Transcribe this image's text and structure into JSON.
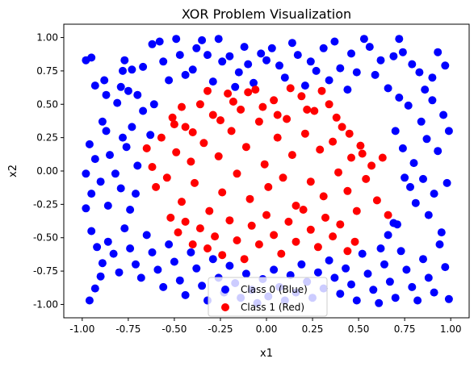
{
  "chart_data": {
    "type": "scatter",
    "title": "XOR Problem Visualization",
    "xlabel": "x1",
    "ylabel": "x2",
    "xlim": [
      -1.1,
      1.1
    ],
    "ylim": [
      -1.1,
      1.1
    ],
    "xticks": [
      "-1.00",
      "-0.75",
      "-0.50",
      "-0.25",
      "0.00",
      "0.25",
      "0.50",
      "0.75",
      "1.00"
    ],
    "yticks": [
      "1.00",
      "0.75",
      "0.50",
      "0.25",
      "0.00",
      "-0.25",
      "-0.50",
      "-0.75",
      "-1.00"
    ],
    "grid": false,
    "legend_position": "bottom-center",
    "series": [
      {
        "name": "Class 0 (Blue)",
        "color": "#0000ff",
        "points": [
          [
            -0.98,
            0.83
          ],
          [
            -0.95,
            0.85
          ],
          [
            -0.93,
            0.64
          ],
          [
            -0.88,
            0.68
          ],
          [
            -0.87,
            0.57
          ],
          [
            -0.79,
            0.63
          ],
          [
            -0.78,
            0.75
          ],
          [
            -0.77,
            0.83
          ],
          [
            -0.73,
            0.76
          ],
          [
            -0.75,
            0.6
          ],
          [
            -0.7,
            0.57
          ],
          [
            -0.67,
            0.78
          ],
          [
            -0.62,
            0.95
          ],
          [
            -0.58,
            0.97
          ],
          [
            -0.56,
            0.82
          ],
          [
            -0.53,
            0.68
          ],
          [
            -0.49,
            0.99
          ],
          [
            -0.47,
            0.87
          ],
          [
            -0.44,
            0.72
          ],
          [
            -0.4,
            0.76
          ],
          [
            -0.38,
            0.92
          ],
          [
            -0.35,
            0.98
          ],
          [
            -0.32,
            0.87
          ],
          [
            -0.29,
            0.67
          ],
          [
            -0.26,
            0.99
          ],
          [
            -0.24,
            0.82
          ],
          [
            -0.2,
            0.86
          ],
          [
            -0.17,
            0.63
          ],
          [
            -0.15,
            0.74
          ],
          [
            -0.12,
            0.93
          ],
          [
            -0.1,
            0.8
          ],
          [
            -0.07,
            0.66
          ],
          [
            -0.03,
            0.88
          ],
          [
            0.0,
            0.83
          ],
          [
            0.03,
            0.92
          ],
          [
            0.07,
            0.79
          ],
          [
            0.1,
            0.7
          ],
          [
            0.14,
            0.96
          ],
          [
            0.17,
            0.87
          ],
          [
            0.21,
            0.64
          ],
          [
            0.24,
            0.82
          ],
          [
            0.27,
            0.75
          ],
          [
            0.31,
            0.92
          ],
          [
            0.34,
            0.68
          ],
          [
            0.37,
            0.97
          ],
          [
            0.4,
            0.77
          ],
          [
            0.44,
            0.61
          ],
          [
            0.46,
            0.88
          ],
          [
            0.49,
            0.74
          ],
          [
            0.53,
            0.99
          ],
          [
            0.56,
            0.93
          ],
          [
            0.59,
            0.72
          ],
          [
            0.62,
            0.83
          ],
          [
            0.66,
            0.62
          ],
          [
            0.69,
            0.86
          ],
          [
            0.72,
            0.99
          ],
          [
            0.74,
            0.89
          ],
          [
            0.79,
            0.8
          ],
          [
            0.83,
            0.74
          ],
          [
            0.86,
            0.61
          ],
          [
            0.9,
            0.7
          ],
          [
            0.93,
            0.89
          ],
          [
            0.97,
            0.79
          ],
          [
            -0.96,
            0.2
          ],
          [
            -0.93,
            0.09
          ],
          [
            -0.89,
            0.37
          ],
          [
            -0.87,
            0.3
          ],
          [
            -0.85,
            0.12
          ],
          [
            -0.81,
            0.51
          ],
          [
            -0.78,
            0.25
          ],
          [
            -0.76,
            0.18
          ],
          [
            -0.73,
            0.33
          ],
          [
            -0.7,
            0.04
          ],
          [
            -0.67,
            0.45
          ],
          [
            -0.63,
            0.27
          ],
          [
            -0.61,
            0.5
          ],
          [
            -0.98,
            -0.02
          ],
          [
            -0.95,
            -0.17
          ],
          [
            -0.9,
            -0.08
          ],
          [
            -0.86,
            -0.26
          ],
          [
            -0.82,
            -0.02
          ],
          [
            -0.79,
            -0.13
          ],
          [
            -0.74,
            -0.29
          ],
          [
            -0.71,
            -0.17
          ],
          [
            0.7,
            0.3
          ],
          [
            0.74,
            0.17
          ],
          [
            0.77,
            0.49
          ],
          [
            0.8,
            0.06
          ],
          [
            0.84,
            0.37
          ],
          [
            0.87,
            0.24
          ],
          [
            0.9,
            0.53
          ],
          [
            0.93,
            0.15
          ],
          [
            0.96,
            0.42
          ],
          [
            0.99,
            0.3
          ],
          [
            0.72,
            0.55
          ],
          [
            0.75,
            -0.05
          ],
          [
            0.78,
            -0.12
          ],
          [
            0.81,
            -0.24
          ],
          [
            0.85,
            -0.06
          ],
          [
            0.88,
            -0.33
          ],
          [
            0.91,
            -0.17
          ],
          [
            0.95,
            -0.46
          ],
          [
            0.98,
            -0.09
          ],
          [
            0.71,
            -0.4
          ],
          [
            -0.98,
            -0.28
          ],
          [
            -0.95,
            -0.45
          ],
          [
            -0.92,
            -0.57
          ],
          [
            -0.89,
            -0.69
          ],
          [
            -0.86,
            -0.53
          ],
          [
            -0.83,
            -0.62
          ],
          [
            -0.8,
            -0.76
          ],
          [
            -0.77,
            -0.43
          ],
          [
            -0.74,
            -0.58
          ],
          [
            -0.71,
            -0.7
          ],
          [
            -0.68,
            -0.8
          ],
          [
            -0.65,
            -0.48
          ],
          [
            -0.62,
            -0.61
          ],
          [
            -0.59,
            -0.74
          ],
          [
            -0.56,
            -0.87
          ],
          [
            -0.53,
            -0.55
          ],
          [
            -0.5,
            -0.68
          ],
          [
            -0.47,
            -0.82
          ],
          [
            -0.44,
            -0.93
          ],
          [
            -0.41,
            -0.61
          ],
          [
            -0.38,
            -0.73
          ],
          [
            -0.35,
            -0.86
          ],
          [
            -0.32,
            -0.97
          ],
          [
            -0.29,
            -0.66
          ],
          [
            -0.26,
            -0.8
          ],
          [
            -0.23,
            -0.91
          ],
          [
            -0.2,
            -0.71
          ],
          [
            -0.17,
            -0.84
          ],
          [
            -0.14,
            -0.95
          ],
          [
            -0.11,
            -0.77
          ],
          [
            -0.08,
            -0.89
          ],
          [
            -0.05,
            -0.99
          ],
          [
            -0.02,
            -0.81
          ],
          [
            0.01,
            -0.94
          ],
          [
            0.04,
            -0.74
          ],
          [
            0.07,
            -0.87
          ],
          [
            0.1,
            -0.97
          ],
          [
            0.13,
            -0.78
          ],
          [
            0.16,
            -0.91
          ],
          [
            0.19,
            -0.7
          ],
          [
            0.22,
            -0.83
          ],
          [
            0.25,
            -0.95
          ],
          [
            0.28,
            -0.76
          ],
          [
            0.31,
            -0.88
          ],
          [
            0.34,
            -0.67
          ],
          [
            0.37,
            -0.8
          ],
          [
            0.4,
            -0.92
          ],
          [
            0.43,
            -0.73
          ],
          [
            0.46,
            -0.85
          ],
          [
            0.49,
            -0.97
          ],
          [
            0.52,
            -0.62
          ],
          [
            0.55,
            -0.77
          ],
          [
            0.58,
            -0.89
          ],
          [
            0.61,
            -0.99
          ],
          [
            0.64,
            -0.7
          ],
          [
            0.67,
            -0.83
          ],
          [
            0.7,
            -0.95
          ],
          [
            0.73,
            -0.6
          ],
          [
            0.76,
            -0.74
          ],
          [
            0.79,
            -0.87
          ],
          [
            0.82,
            -0.97
          ],
          [
            0.85,
            -0.66
          ],
          [
            0.88,
            -0.8
          ],
          [
            0.91,
            -0.91
          ],
          [
            0.94,
            -0.55
          ],
          [
            0.97,
            -0.72
          ],
          [
            0.99,
            -0.96
          ],
          [
            -0.96,
            -0.97
          ],
          [
            -0.93,
            -0.88
          ],
          [
            -0.9,
            -0.79
          ],
          [
            0.66,
            -0.48
          ],
          [
            0.69,
            -0.39
          ],
          [
            0.62,
            -0.58
          ]
        ]
      },
      {
        "name": "Class 1 (Red)",
        "color": "#ff0000",
        "points": [
          [
            -0.65,
            0.17
          ],
          [
            -0.62,
            0.03
          ],
          [
            -0.6,
            -0.12
          ],
          [
            -0.57,
            0.25
          ],
          [
            -0.54,
            -0.05
          ],
          [
            -0.51,
            0.4
          ],
          [
            -0.49,
            0.14
          ],
          [
            -0.46,
            -0.23
          ],
          [
            -0.44,
            0.33
          ],
          [
            -0.41,
            0.07
          ],
          [
            -0.39,
            -0.09
          ],
          [
            -0.36,
            0.5
          ],
          [
            -0.34,
            0.21
          ],
          [
            -0.31,
            -0.3
          ],
          [
            -0.29,
            0.42
          ],
          [
            -0.26,
            0.11
          ],
          [
            -0.24,
            -0.16
          ],
          [
            -0.21,
            0.58
          ],
          [
            -0.19,
            0.3
          ],
          [
            -0.16,
            -0.02
          ],
          [
            -0.14,
            0.46
          ],
          [
            -0.11,
            0.18
          ],
          [
            -0.09,
            -0.21
          ],
          [
            -0.06,
            0.61
          ],
          [
            -0.04,
            0.37
          ],
          [
            -0.01,
            0.05
          ],
          [
            0.01,
            -0.12
          ],
          [
            0.04,
            0.53
          ],
          [
            0.06,
            0.25
          ],
          [
            0.09,
            -0.05
          ],
          [
            0.11,
            0.39
          ],
          [
            0.14,
            0.12
          ],
          [
            0.16,
            -0.26
          ],
          [
            0.19,
            0.56
          ],
          [
            0.21,
            0.28
          ],
          [
            0.24,
            -0.08
          ],
          [
            0.26,
            0.45
          ],
          [
            0.29,
            0.16
          ],
          [
            0.31,
            -0.19
          ],
          [
            0.34,
            0.5
          ],
          [
            0.36,
            0.22
          ],
          [
            0.39,
            -0.01
          ],
          [
            0.41,
            0.33
          ],
          [
            0.44,
            -0.15
          ],
          [
            0.46,
            0.1
          ],
          [
            0.49,
            -0.3
          ],
          [
            0.51,
            0.19
          ],
          [
            0.54,
            -0.06
          ],
          [
            0.57,
            0.04
          ],
          [
            0.6,
            -0.22
          ],
          [
            0.63,
            0.1
          ],
          [
            0.66,
            -0.33
          ],
          [
            -0.52,
            -0.35
          ],
          [
            -0.48,
            -0.46
          ],
          [
            -0.44,
            -0.38
          ],
          [
            -0.4,
            -0.55
          ],
          [
            -0.36,
            -0.43
          ],
          [
            -0.32,
            -0.58
          ],
          [
            -0.28,
            -0.49
          ],
          [
            -0.24,
            -0.63
          ],
          [
            -0.2,
            -0.37
          ],
          [
            -0.16,
            -0.52
          ],
          [
            -0.12,
            -0.66
          ],
          [
            -0.08,
            -0.41
          ],
          [
            -0.04,
            -0.55
          ],
          [
            0.0,
            -0.33
          ],
          [
            0.04,
            -0.48
          ],
          [
            0.08,
            -0.62
          ],
          [
            0.12,
            -0.38
          ],
          [
            0.16,
            -0.53
          ],
          [
            0.2,
            -0.29
          ],
          [
            0.24,
            -0.44
          ],
          [
            0.28,
            -0.57
          ],
          [
            0.32,
            -0.35
          ],
          [
            0.36,
            -0.49
          ],
          [
            0.4,
            -0.4
          ],
          [
            0.44,
            -0.6
          ],
          [
            0.48,
            -0.53
          ],
          [
            -0.5,
            0.35
          ],
          [
            -0.46,
            0.48
          ],
          [
            -0.4,
            0.29
          ],
          [
            -0.32,
            0.6
          ],
          [
            -0.25,
            0.38
          ],
          [
            -0.18,
            0.52
          ],
          [
            -0.1,
            0.59
          ],
          [
            -0.02,
            0.48
          ],
          [
            0.06,
            0.42
          ],
          [
            0.13,
            0.62
          ],
          [
            0.22,
            0.46
          ],
          [
            0.3,
            0.6
          ],
          [
            0.38,
            0.4
          ],
          [
            0.45,
            0.28
          ],
          [
            0.52,
            0.13
          ]
        ]
      }
    ]
  }
}
